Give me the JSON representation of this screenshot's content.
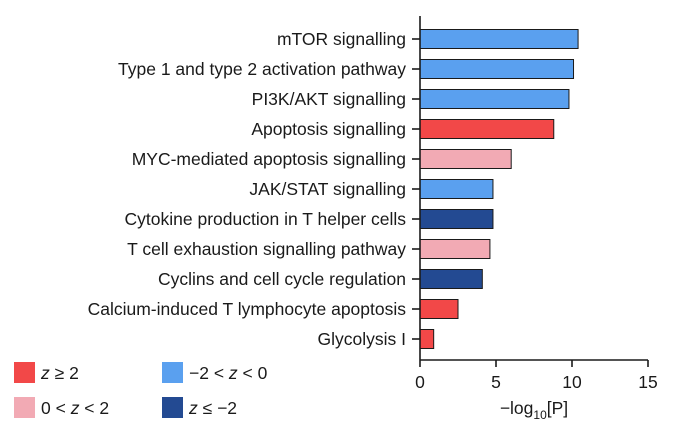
{
  "chart_data": {
    "type": "bar",
    "orientation": "horizontal",
    "categories": [
      "mTOR signalling",
      "Type 1 and type 2 activation pathway",
      "PI3K/AKT signalling",
      "Apoptosis signalling",
      "MYC-mediated apoptosis signalling",
      "JAK/STAT signalling",
      "Cytokine production in T helper cells",
      "T cell exhaustion signalling pathway",
      "Cyclins and cell cycle regulation",
      "Calcium-induced T lymphocyte apoptosis",
      "Glycolysis I"
    ],
    "values": [
      10.4,
      10.1,
      9.8,
      8.8,
      6.0,
      4.8,
      4.8,
      4.6,
      4.1,
      2.5,
      0.9
    ],
    "groups": [
      "-2<z<0",
      "-2<z<0",
      "-2<z<0",
      "z>=2",
      "0<z<2",
      "-2<z<0",
      "z<=-2",
      "0<z<2",
      "z<=-2",
      "z>=2",
      "z>=2"
    ],
    "xlim": [
      0,
      15
    ],
    "xticks": [
      0,
      5,
      10,
      15
    ],
    "xlabel": {
      "prefix": "−log",
      "sub": "10",
      "suffix": "[P]"
    },
    "ylabel": "",
    "title": "",
    "grid": false,
    "legend": {
      "placement": "bottom-left",
      "items": [
        {
          "key": "z>=2",
          "parts": [
            {
              "t": "z",
              "i": true
            },
            {
              "t": " ≥ 2",
              "i": false
            }
          ],
          "color": "#f24848"
        },
        {
          "key": "-2<z<0",
          "parts": [
            {
              "t": "−2 < ",
              "i": false
            },
            {
              "t": "z",
              "i": true
            },
            {
              "t": " < 0",
              "i": false
            }
          ],
          "color": "#5aa0ef"
        },
        {
          "key": "0<z<2",
          "parts": [
            {
              "t": "0 < ",
              "i": false
            },
            {
              "t": "z",
              "i": true
            },
            {
              "t": " < 2",
              "i": false
            }
          ],
          "color": "#f2aab4"
        },
        {
          "key": "z<=-2",
          "parts": [
            {
              "t": "z",
              "i": true
            },
            {
              "t": " ≤ −2",
              "i": false
            }
          ],
          "color": "#234a92"
        }
      ]
    }
  }
}
